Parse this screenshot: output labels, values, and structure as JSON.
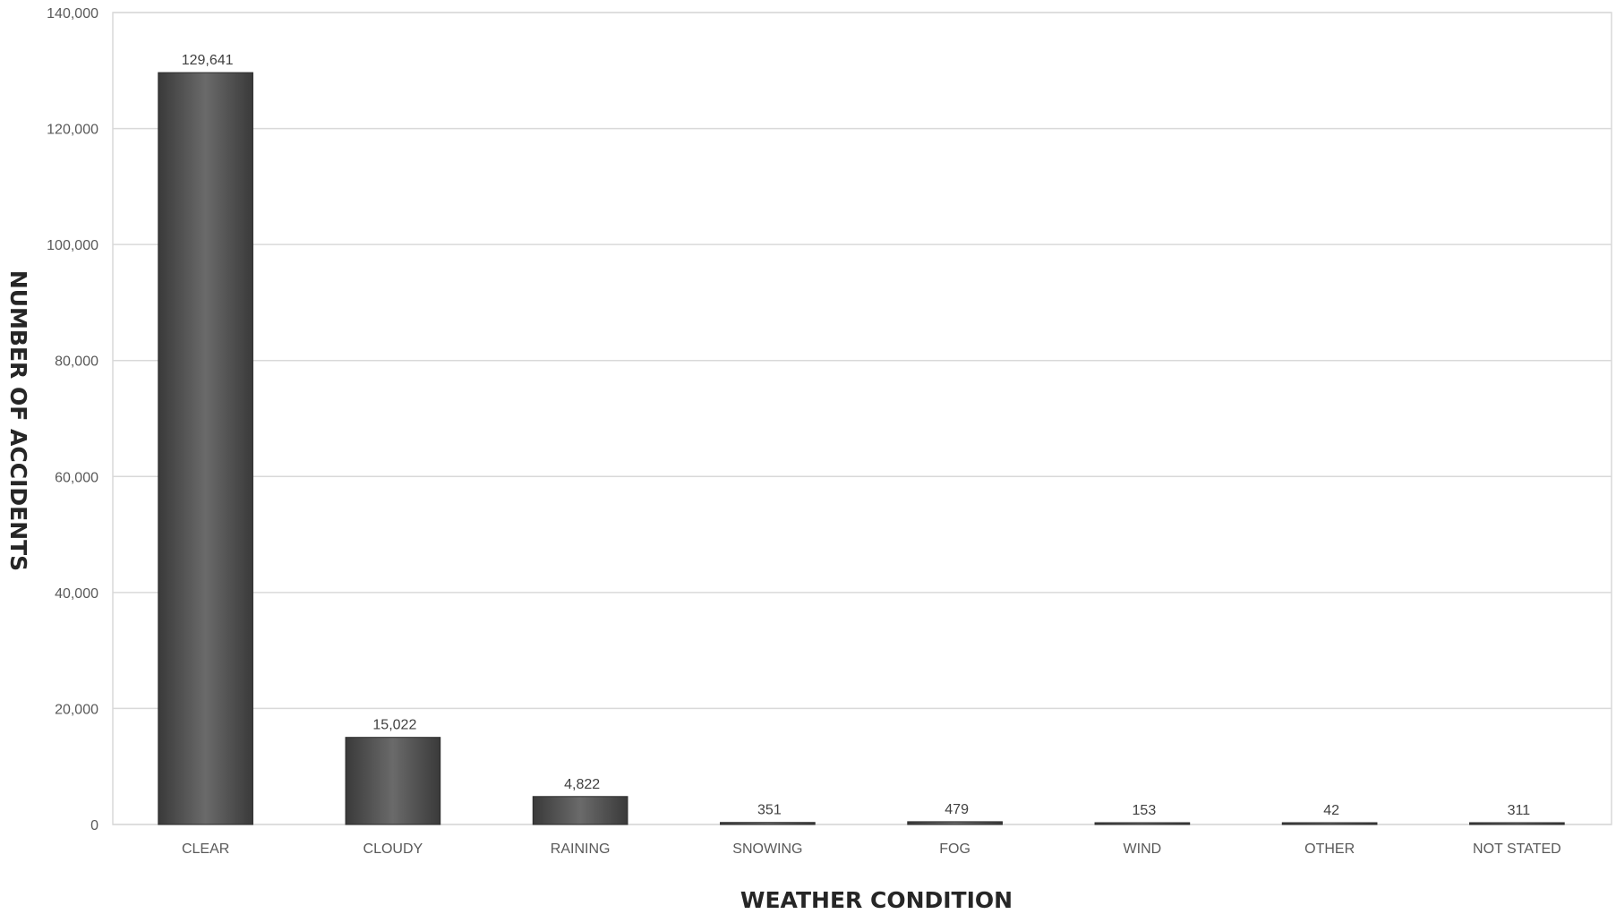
{
  "chart_data": {
    "type": "bar",
    "title": "",
    "xlabel": "WEATHER CONDITION",
    "ylabel": "NUMBER OF ACCIDENTS",
    "categories": [
      "CLEAR",
      "CLOUDY",
      "RAINING",
      "SNOWING",
      "FOG",
      "WIND",
      "OTHER",
      "NOT STATED"
    ],
    "values": [
      129641,
      15022,
      4822,
      351,
      479,
      153,
      42,
      311
    ],
    "data_labels": [
      "129,641",
      "15,022",
      "4,822",
      "351",
      "479",
      "153",
      "42",
      "311"
    ],
    "ylim": [
      0,
      140000
    ],
    "yticks": [
      0,
      20000,
      40000,
      60000,
      80000,
      100000,
      120000,
      140000
    ],
    "ytick_labels": [
      "0",
      "20,000",
      "40,000",
      "60,000",
      "80,000",
      "100,000",
      "120,000",
      "140,000"
    ],
    "grid": true,
    "legend": "none",
    "colors": {
      "bar": "#545454",
      "bar_light": "#6e6e6e",
      "bar_dark": "#3a3a3a",
      "grid": "#d9d9d9"
    }
  }
}
